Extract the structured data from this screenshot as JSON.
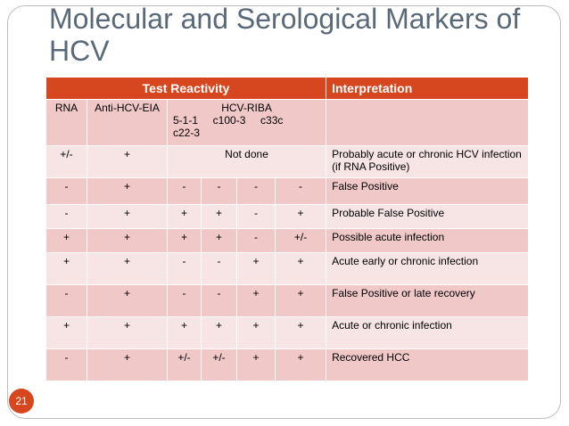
{
  "slide": {
    "title": "Molecular and Serological Markers of HCV",
    "number": "21"
  },
  "table": {
    "header": {
      "test_reactivity": "Test Reactivity",
      "interpretation": "Interpretation"
    },
    "subheader": {
      "rna": "RNA",
      "anti_hcv_eia": "Anti-HCV-EIA",
      "riba_title": "HCV-RIBA",
      "riba_line1": "5-1-1     c100-3     c33c",
      "riba_line2": "c22-3"
    },
    "not_done_row": {
      "rna": "+/-",
      "eia": "+",
      "riba": "Not done",
      "interpretation": "Probably acute or chronic HCV infection (if RNA  Positive)"
    },
    "rows": [
      {
        "rna": "-",
        "eia": "+",
        "r1": "-",
        "r2": "-",
        "r3": "-",
        "r4": "-",
        "interpretation": "False Positive"
      },
      {
        "rna": "-",
        "eia": "+",
        "r1": "+",
        "r2": "+",
        "r3": "-",
        "r4": "+",
        "interpretation": "Probable False Positive"
      },
      {
        "rna": "+",
        "eia": "+",
        "r1": "+",
        "r2": "+",
        "r3": "-",
        "r4": "+/-",
        "interpretation": "Possible acute infection"
      },
      {
        "rna": "+",
        "eia": "+",
        "r1": "-",
        "r2": "-",
        "r3": "+",
        "r4": "+",
        "interpretation": "Acute early or chronic infection"
      },
      {
        "rna": "-",
        "eia": "+",
        "r1": "-",
        "r2": "-",
        "r3": "+",
        "r4": "+",
        "interpretation": "False Positive or late recovery"
      },
      {
        "rna": "+",
        "eia": "+",
        "r1": "+",
        "r2": "+",
        "r3": "+",
        "r4": "+",
        "interpretation": "Acute or chronic infection"
      },
      {
        "rna": "-",
        "eia": "+",
        "r1": "+/-",
        "r2": "+/-",
        "r3": "+",
        "r4": "+",
        "interpretation": "Recovered HCC"
      }
    ]
  }
}
